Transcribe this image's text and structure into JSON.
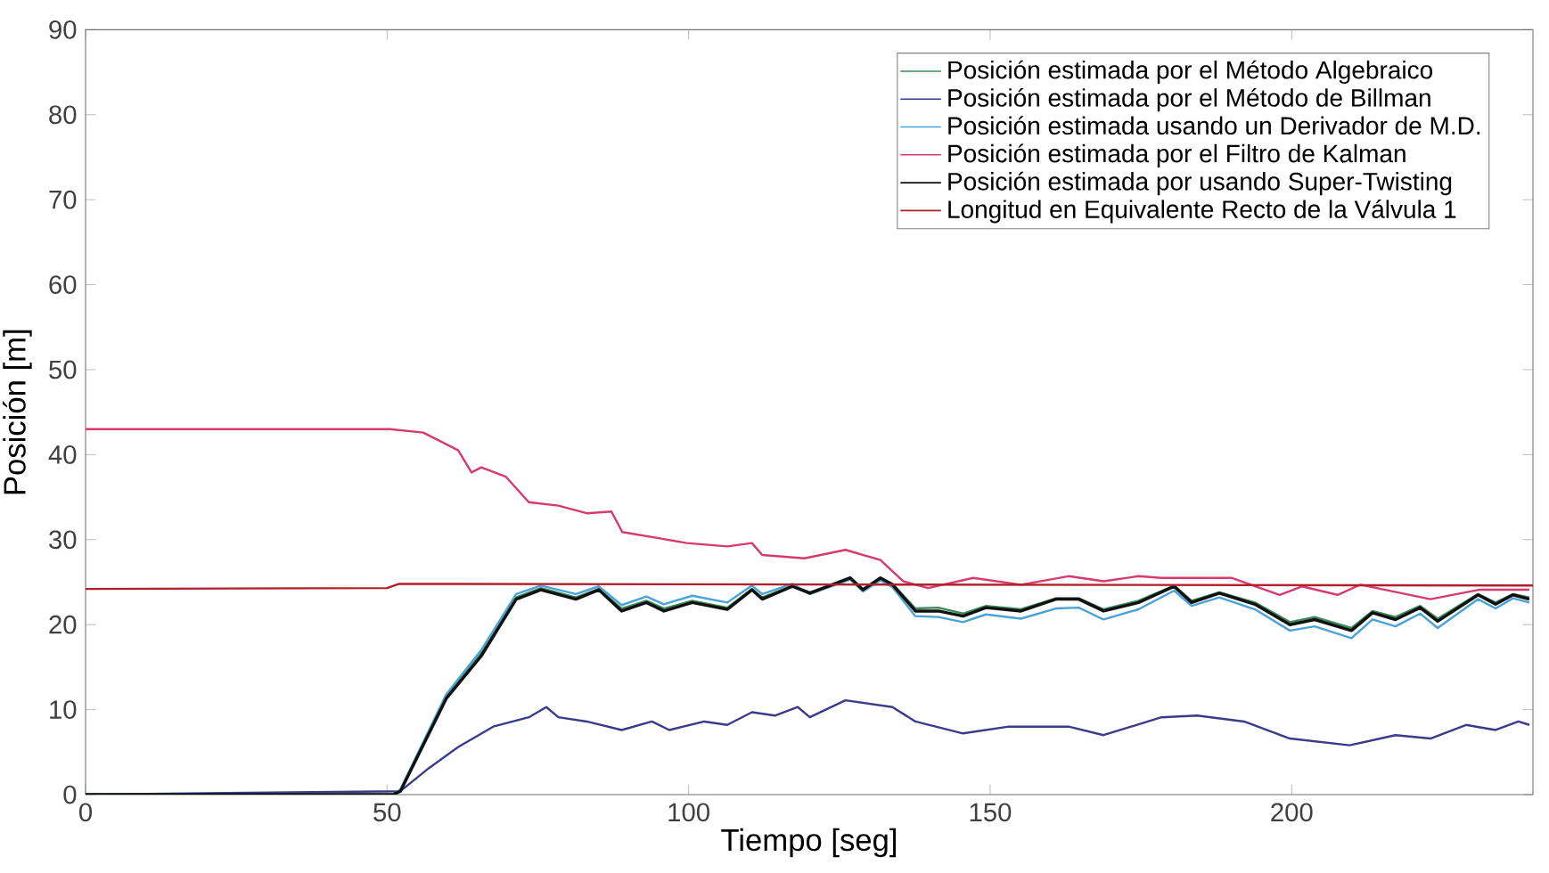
{
  "chart_data": {
    "type": "line",
    "xlabel": "Tiempo [seg]",
    "ylabel": "Posición [m]",
    "xlim": [
      0,
      240
    ],
    "ylim": [
      0,
      90
    ],
    "xticks": [
      0,
      50,
      100,
      150,
      200
    ],
    "yticks": [
      0,
      10,
      20,
      30,
      40,
      50,
      60,
      70,
      80,
      90
    ],
    "legend": "top right",
    "series": [
      {
        "name": "Posición estimada por el Método Algebraico",
        "color": "#3a8a5c",
        "x": [
          0,
          51,
          52.2,
          59.8,
          65.6,
          71.4,
          75.5,
          81.3,
          85.1,
          88.9,
          93,
          95.9,
          100.6,
          106.4,
          110.5,
          112.2,
          117.2,
          120.1,
          126.8,
          128.9,
          131.8,
          133.8,
          137.6,
          141.4,
          145.5,
          149.3,
          155.1,
          160.9,
          164.7,
          168.8,
          174.6,
          180.5,
          183.4,
          188,
          193.9,
          199.7,
          203.8,
          209.9,
          213.4,
          217.2,
          221.3,
          224.2,
          230.9,
          233.8,
          236.7,
          239.4
        ],
        "values": [
          0,
          0,
          0.5,
          11.6,
          16.6,
          23.2,
          24.3,
          23.2,
          24.2,
          21.9,
          22.8,
          21.9,
          22.8,
          22,
          24.2,
          23.2,
          24.6,
          23.8,
          25.4,
          24.2,
          25.4,
          24.8,
          21.9,
          22,
          21.3,
          22.2,
          21.8,
          23.1,
          23.1,
          21.8,
          22.8,
          24.6,
          22.8,
          23.8,
          22.6,
          20.3,
          20.9,
          19.6,
          21.6,
          20.9,
          22.2,
          20.7,
          23.6,
          22.6,
          23.6,
          23.2
        ]
      },
      {
        "name": "Posición estimada por el Método de Billman",
        "color": "#3c3a8a",
        "x": [
          0,
          52.2,
          56.9,
          61.8,
          67.6,
          73.5,
          76.4,
          78.4,
          83.1,
          88.9,
          93.9,
          96.8,
          102.6,
          106.4,
          110.5,
          114.3,
          118.1,
          120.1,
          126,
          133.8,
          137.6,
          145.5,
          153.1,
          163,
          168.8,
          178.4,
          184.3,
          192.1,
          199.7,
          209.6,
          217.2,
          223,
          228.9,
          233.8,
          237.6,
          239.4
        ],
        "values": [
          0,
          0.4,
          3.1,
          5.6,
          8,
          9.1,
          10.3,
          9.1,
          8.6,
          7.6,
          8.6,
          7.6,
          8.6,
          8.2,
          9.7,
          9.3,
          10.3,
          9.1,
          11.1,
          10.3,
          8.6,
          7.2,
          8,
          8,
          7,
          9.1,
          9.3,
          8.6,
          6.6,
          5.8,
          7,
          6.6,
          8.2,
          7.6,
          8.6,
          8.2
        ]
      },
      {
        "name": "Posición estimada usando un Derivador de M.D.",
        "color": "#4aa3d6",
        "x": [
          0,
          51,
          52.2,
          59.8,
          65.6,
          71.4,
          75.5,
          81.3,
          85.1,
          88.9,
          93,
          95.9,
          100.6,
          106.4,
          110.5,
          112.2,
          117.2,
          120.1,
          126.8,
          128.9,
          131.8,
          133.8,
          137.6,
          141.4,
          145.5,
          149.3,
          155.1,
          160.9,
          164.7,
          168.8,
          174.6,
          180.5,
          183.4,
          188,
          193.9,
          199.7,
          203.8,
          209.9,
          213.4,
          217.2,
          221.3,
          224.2,
          230.9,
          233.8,
          236.7,
          239.4
        ],
        "values": [
          0,
          0,
          0.6,
          11.8,
          17,
          23.6,
          24.6,
          23.6,
          24.5,
          22.3,
          23.3,
          22.4,
          23.4,
          22.6,
          24.6,
          23.6,
          24.8,
          23.6,
          25.3,
          23.9,
          25.2,
          24.4,
          21,
          20.9,
          20.3,
          21.2,
          20.7,
          21.9,
          22,
          20.6,
          21.8,
          24,
          22.2,
          23.2,
          21.8,
          19.3,
          19.8,
          18.4,
          20.6,
          19.8,
          21.3,
          19.6,
          23,
          21.9,
          23.1,
          22.6
        ]
      },
      {
        "name": "Posición estimada por el Filtro de Kalman",
        "color": "#d63a6e",
        "x": [
          0,
          50.5,
          56,
          61.8,
          64,
          65.6,
          69.7,
          73.5,
          78.4,
          83.1,
          87.2,
          89,
          94.8,
          99.7,
          106.4,
          110.5,
          112.2,
          119.2,
          126,
          131.8,
          135.6,
          139.7,
          147.2,
          155.1,
          163,
          168.8,
          174.6,
          178.4,
          190,
          198,
          201.7,
          207.6,
          211.4,
          223,
          231,
          239.4
        ],
        "values": [
          43,
          43,
          42.6,
          40.5,
          37.9,
          38.5,
          37.4,
          34.4,
          34,
          33.1,
          33.3,
          30.9,
          30.2,
          29.6,
          29.2,
          29.6,
          28.2,
          27.8,
          28.8,
          27.6,
          25.1,
          24.3,
          25.5,
          24.7,
          25.7,
          25.1,
          25.7,
          25.5,
          25.5,
          23.5,
          24.5,
          23.5,
          24.7,
          23,
          24.1,
          24.1
        ]
      },
      {
        "name": "Posición estimada por usando Super-Twisting",
        "color": "#111111",
        "x": [
          0,
          51,
          52.2,
          59.8,
          65.6,
          71.4,
          75.5,
          81.3,
          85.1,
          88.9,
          93,
          95.9,
          100.6,
          106.4,
          110.5,
          112.2,
          117.2,
          120.1,
          126.8,
          128.9,
          131.8,
          133.8,
          137.6,
          141.4,
          145.5,
          149.3,
          155.1,
          160.9,
          164.7,
          168.8,
          174.6,
          180.5,
          183.4,
          188,
          193.9,
          199.7,
          203.8,
          209.9,
          213.4,
          217.2,
          221.3,
          224.2,
          230.9,
          233.8,
          236.7,
          239.4
        ],
        "values": [
          0,
          0,
          0.4,
          11.3,
          16.3,
          23,
          24.1,
          23,
          24.1,
          21.6,
          22.6,
          21.6,
          22.6,
          21.8,
          24.1,
          23,
          24.5,
          23.7,
          25.5,
          24.1,
          25.5,
          24.7,
          21.6,
          21.6,
          21,
          22,
          21.6,
          23,
          23,
          21.6,
          22.6,
          24.5,
          22.6,
          23.7,
          22.4,
          20,
          20.6,
          19.3,
          21.4,
          20.6,
          22,
          20.4,
          23.5,
          22.4,
          23.5,
          23
        ]
      },
      {
        "name": "Longitud en Equivalente Recto de la Válvula 1",
        "color": "#b0202a",
        "x": [
          0,
          50,
          52,
          240
        ],
        "values": [
          24.2,
          24.3,
          24.8,
          24.6
        ]
      }
    ]
  }
}
